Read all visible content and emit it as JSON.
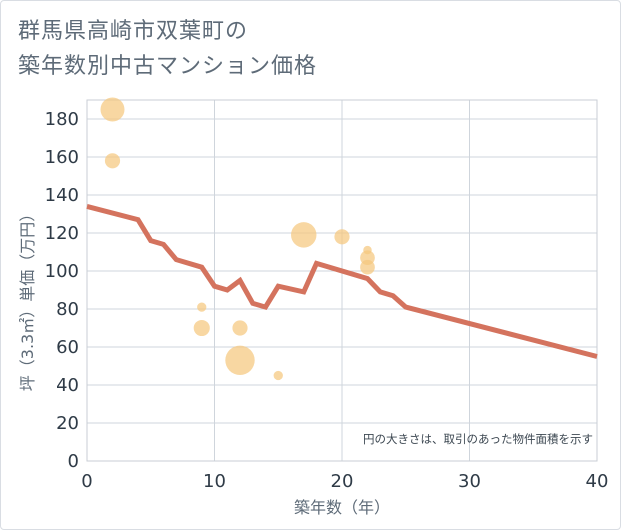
{
  "title_lines": [
    "群馬県高崎市双葉町の",
    "築年数別中古マンション価格"
  ],
  "chart_data": {
    "type": "scatter",
    "title": "群馬県高崎市双葉町の築年数別中古マンション価格",
    "xlabel": "築年数（年）",
    "ylabel": "坪（3.3㎡）単価（万円）",
    "xlim": [
      0,
      40
    ],
    "ylim": [
      0,
      190
    ],
    "xticks": [
      0,
      10,
      20,
      30,
      40
    ],
    "yticks": [
      0,
      20,
      40,
      60,
      80,
      100,
      120,
      140,
      160,
      180
    ],
    "grid": true,
    "note": "円の大きさは、取引のあった物件面積を示す",
    "series": [
      {
        "kind": "bubble",
        "color": "#f5c77e",
        "points": [
          {
            "x": 2,
            "y": 185,
            "size": 4.0
          },
          {
            "x": 2,
            "y": 158,
            "size": 1.6
          },
          {
            "x": 9,
            "y": 81,
            "size": 0.6
          },
          {
            "x": 9,
            "y": 70,
            "size": 1.8
          },
          {
            "x": 12,
            "y": 70,
            "size": 1.6
          },
          {
            "x": 12,
            "y": 53,
            "size": 6.0
          },
          {
            "x": 15,
            "y": 45,
            "size": 0.6
          },
          {
            "x": 17,
            "y": 119,
            "size": 4.5
          },
          {
            "x": 20,
            "y": 118,
            "size": 1.6
          },
          {
            "x": 22,
            "y": 111,
            "size": 0.5
          },
          {
            "x": 22,
            "y": 107,
            "size": 1.5
          },
          {
            "x": 22,
            "y": 102,
            "size": 1.5
          }
        ]
      },
      {
        "kind": "line",
        "color": "#d4735e",
        "points": [
          {
            "x": 0,
            "y": 134
          },
          {
            "x": 4,
            "y": 127
          },
          {
            "x": 5,
            "y": 116
          },
          {
            "x": 6,
            "y": 114
          },
          {
            "x": 7,
            "y": 106
          },
          {
            "x": 9,
            "y": 102
          },
          {
            "x": 10,
            "y": 92
          },
          {
            "x": 11,
            "y": 90
          },
          {
            "x": 12,
            "y": 95
          },
          {
            "x": 13,
            "y": 83
          },
          {
            "x": 14,
            "y": 81
          },
          {
            "x": 15,
            "y": 92
          },
          {
            "x": 17,
            "y": 89
          },
          {
            "x": 18,
            "y": 104
          },
          {
            "x": 22,
            "y": 96
          },
          {
            "x": 23,
            "y": 89
          },
          {
            "x": 24,
            "y": 87
          },
          {
            "x": 25,
            "y": 81
          },
          {
            "x": 40,
            "y": 55
          }
        ]
      }
    ]
  }
}
